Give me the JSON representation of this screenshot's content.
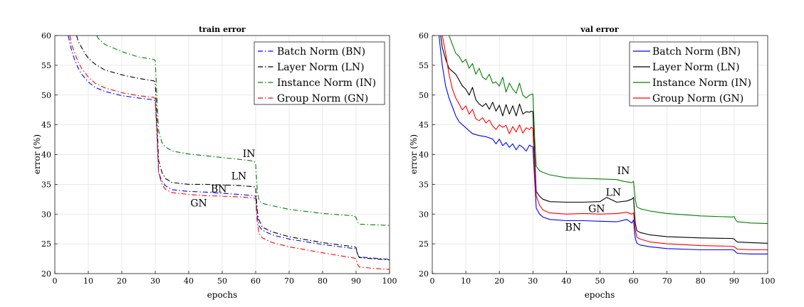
{
  "chart_data": [
    {
      "type": "line",
      "title": "train error",
      "xlabel": "epochs",
      "ylabel": "error (%)",
      "xlim": [
        0,
        100
      ],
      "ylim": [
        20,
        60
      ],
      "xticks": [
        0,
        10,
        20,
        30,
        40,
        50,
        60,
        70,
        80,
        90,
        100
      ],
      "yticks": [
        20,
        25,
        30,
        35,
        40,
        45,
        50,
        55,
        60
      ],
      "grid": true,
      "legend_position": "top-right",
      "line_style": "dash-dot",
      "series": [
        {
          "name": "Batch Norm (BN)",
          "color": "#0000ff",
          "x": [
            4,
            5,
            6,
            7,
            8,
            10,
            12,
            15,
            20,
            25,
            29.5,
            30,
            30.5,
            31,
            32,
            33,
            35,
            40,
            45,
            50,
            55,
            59.5,
            60,
            60.5,
            61,
            62,
            65,
            70,
            80,
            89.5,
            90,
            90.5,
            91,
            95,
            100
          ],
          "y": [
            60,
            57.5,
            55.8,
            54.5,
            53.5,
            52.2,
            51.3,
            50.6,
            49.9,
            49.5,
            49.2,
            49,
            44,
            37,
            35.5,
            34.8,
            34.1,
            33.8,
            33.7,
            33.5,
            33.3,
            33.1,
            33,
            29.5,
            28,
            27.3,
            26.5,
            25.8,
            24.9,
            24.2,
            24.1,
            23.2,
            22.8,
            22.6,
            22.4
          ]
        },
        {
          "name": "Layer Norm (LN)",
          "color": "#000000",
          "x": [
            6.5,
            7,
            8,
            9,
            10,
            12,
            15,
            20,
            25,
            29.5,
            30,
            30.5,
            31,
            32,
            33,
            35,
            40,
            45,
            50,
            55,
            59.5,
            60,
            60.5,
            61,
            62,
            65,
            70,
            80,
            89.5,
            90,
            90.5,
            91,
            95,
            100
          ],
          "y": [
            60,
            59,
            58,
            57,
            56.2,
            55.2,
            54.2,
            53.4,
            52.8,
            52.4,
            52.2,
            46,
            39,
            37,
            36,
            35.3,
            35,
            35,
            34.9,
            34.8,
            34.6,
            34.5,
            30.5,
            29,
            27.8,
            27,
            26.2,
            25.2,
            24.5,
            24.4,
            23.1,
            22.7,
            22.5,
            22.3
          ]
        },
        {
          "name": "Instance Norm (IN)",
          "color": "#008000",
          "x": [
            12.5,
            13,
            15,
            20,
            25,
            29.5,
            30,
            30.5,
            31,
            32,
            33,
            35,
            40,
            45,
            50,
            55,
            59.5,
            60,
            60.5,
            61,
            62,
            65,
            70,
            80,
            89.5,
            90,
            90.5,
            91,
            95,
            100
          ],
          "y": [
            60,
            59.5,
            58.5,
            57.3,
            56.4,
            56,
            55.8,
            50,
            44,
            42,
            41.3,
            40.6,
            40.1,
            39.8,
            39.5,
            39.2,
            38.9,
            38.5,
            34,
            32.3,
            31.8,
            31.4,
            30.8,
            30.1,
            29.7,
            29.4,
            28.6,
            28.3,
            28.2,
            28.1
          ]
        },
        {
          "name": "Group Norm (GN)",
          "color": "#ff0000",
          "x": [
            4.5,
            5,
            6,
            7,
            8,
            10,
            12,
            15,
            20,
            25,
            29.5,
            30,
            30.5,
            31,
            32,
            33,
            35,
            40,
            45,
            50,
            55,
            59.5,
            60,
            60.5,
            61,
            62,
            65,
            70,
            80,
            89.5,
            90,
            90.5,
            91,
            95,
            100
          ],
          "y": [
            60,
            58.5,
            57,
            55.5,
            54.5,
            53,
            52,
            51.2,
            50.4,
            49.9,
            49.6,
            49.4,
            44,
            37,
            35,
            34.2,
            33.6,
            33.3,
            33.1,
            33,
            32.9,
            32.7,
            32.6,
            28.5,
            26.8,
            26,
            25.2,
            24.5,
            23.5,
            22.6,
            22.5,
            21.5,
            21.1,
            20.9,
            20.7
          ]
        }
      ],
      "annotations": [
        {
          "text": "IN",
          "x": 58,
          "y": 39.6
        },
        {
          "text": "LN",
          "x": 55,
          "y": 35.8
        },
        {
          "text": "BN",
          "x": 49,
          "y": 33.7
        },
        {
          "text": "GN",
          "x": 43,
          "y": 31.3
        }
      ]
    },
    {
      "type": "line",
      "title": "val error",
      "xlabel": "epochs",
      "ylabel": "error (%)",
      "xlim": [
        0,
        100
      ],
      "ylim": [
        20,
        60
      ],
      "xticks": [
        0,
        10,
        20,
        30,
        40,
        50,
        60,
        70,
        80,
        90,
        100
      ],
      "yticks": [
        20,
        25,
        30,
        35,
        40,
        45,
        50,
        55,
        60
      ],
      "grid": true,
      "legend_position": "top-right",
      "line_style": "solid",
      "series": [
        {
          "name": "Batch Norm (BN)",
          "color": "#0000ff",
          "x": [
            2,
            3,
            4,
            5,
            6,
            7,
            8,
            10,
            12,
            14,
            16,
            18,
            19,
            20,
            21,
            22,
            23,
            24,
            25,
            26,
            27,
            28,
            29,
            29.5,
            30,
            30.5,
            31,
            32,
            33,
            35,
            40,
            45,
            50,
            55,
            58,
            59.5,
            60,
            60.5,
            61,
            62,
            65,
            70,
            80,
            89.5,
            90,
            90.5,
            91,
            95,
            100
          ],
          "y": [
            60,
            55,
            51.5,
            49.5,
            48,
            46.5,
            45.5,
            44.5,
            43.5,
            43.2,
            43,
            42.6,
            41.8,
            42.6,
            41.5,
            42,
            41.2,
            41.8,
            40.8,
            41.6,
            41.2,
            40.6,
            41.6,
            41.4,
            41.3,
            36,
            31,
            30,
            29.5,
            29.1,
            28.9,
            28.9,
            28.8,
            28.7,
            29.1,
            28.5,
            29,
            26,
            25.1,
            24.8,
            24.5,
            24.2,
            24,
            24,
            23.9,
            23.6,
            23.4,
            23.3,
            23.3
          ]
        },
        {
          "name": "Layer Norm (LN)",
          "color": "#000000",
          "x": [
            2.5,
            3,
            4,
            5,
            6,
            7,
            8,
            9,
            10,
            11,
            12,
            13,
            14,
            15,
            16,
            17,
            18,
            19,
            20,
            21,
            22,
            23,
            24,
            25,
            26,
            27,
            28,
            29,
            29.5,
            30,
            30.5,
            31,
            32,
            33,
            35,
            40,
            45,
            50,
            52,
            55,
            58,
            59.5,
            60,
            60.5,
            61,
            62,
            65,
            70,
            80,
            89.5,
            90,
            90.5,
            91,
            95,
            100
          ],
          "y": [
            60,
            58,
            56,
            54.5,
            54,
            53.5,
            52.5,
            51.5,
            51,
            50,
            51.3,
            49.2,
            48.5,
            48.1,
            48.6,
            47.6,
            48.8,
            47.3,
            48.3,
            46.5,
            48.4,
            46.8,
            48.2,
            46.5,
            48.5,
            46.8,
            47.2,
            47.1,
            47.3,
            47.2,
            40,
            33.8,
            33,
            32.5,
            32.1,
            32,
            32,
            32.1,
            32.8,
            32,
            32.2,
            32.5,
            32.8,
            28.5,
            27.2,
            26.9,
            26.5,
            26.2,
            26,
            25.9,
            25.8,
            25.5,
            25.3,
            25.2,
            25.1
          ]
        },
        {
          "name": "Instance Norm (IN)",
          "color": "#008000",
          "x": [
            5,
            6,
            7,
            8,
            9,
            10,
            11,
            12,
            13,
            14,
            15,
            16,
            17,
            18,
            19,
            20,
            21,
            22,
            23,
            24,
            25,
            26,
            27,
            28,
            29,
            29.5,
            30,
            30.5,
            31,
            32,
            33,
            35,
            40,
            45,
            50,
            55,
            57,
            59.5,
            60,
            60.5,
            61,
            62,
            65,
            70,
            80,
            89.5,
            90,
            90.5,
            91,
            95,
            100
          ],
          "y": [
            60,
            58.5,
            57,
            56.5,
            55.5,
            56,
            54.5,
            55.3,
            53.5,
            54.5,
            53,
            52.6,
            53.5,
            52,
            52.2,
            51.5,
            53,
            50.5,
            52,
            51,
            50.3,
            52,
            50,
            49.5,
            50,
            50.1,
            50.2,
            43,
            38,
            37.3,
            37,
            36.6,
            36.1,
            36,
            35.9,
            35.8,
            35.5,
            35.3,
            35.5,
            32.5,
            31.2,
            30.9,
            30.5,
            30.1,
            29.7,
            29.5,
            29.6,
            29,
            28.7,
            28.5,
            28.4
          ]
        },
        {
          "name": "Group Norm (GN)",
          "color": "#ff0000",
          "x": [
            3,
            4,
            5,
            6,
            7,
            8,
            9,
            10,
            11,
            12,
            13,
            14,
            15,
            16,
            17,
            18,
            19,
            20,
            21,
            22,
            23,
            24,
            25,
            26,
            27,
            28,
            29,
            29.5,
            30,
            30.5,
            31,
            32,
            33,
            35,
            40,
            45,
            50,
            55,
            58,
            59.5,
            60,
            60.5,
            61,
            62,
            65,
            70,
            80,
            89.5,
            90,
            90.5,
            91,
            95,
            100
          ],
          "y": [
            60,
            57,
            53.5,
            51,
            49.5,
            48.5,
            47.5,
            48.2,
            46.8,
            47.6,
            46,
            45.7,
            46.2,
            45.3,
            45.8,
            44.8,
            44.2,
            45,
            44.6,
            44.9,
            43.5,
            44.7,
            43.8,
            45,
            43.6,
            44.5,
            44.2,
            44.6,
            44.4,
            38,
            33,
            31.5,
            30.7,
            30.2,
            30,
            30.1,
            30,
            30.1,
            30.3,
            30,
            30.2,
            27.4,
            26.1,
            25.8,
            25.3,
            25,
            24.7,
            24.6,
            24.5,
            24.3,
            24.1,
            24,
            24
          ]
        }
      ],
      "annotations": [
        {
          "text": "IN",
          "x": 57,
          "y": 36.7
        },
        {
          "text": "LN",
          "x": 54,
          "y": 33.1
        },
        {
          "text": "GN",
          "x": 49,
          "y": 30.3
        },
        {
          "text": "BN",
          "x": 42,
          "y": 27.2
        }
      ]
    }
  ]
}
